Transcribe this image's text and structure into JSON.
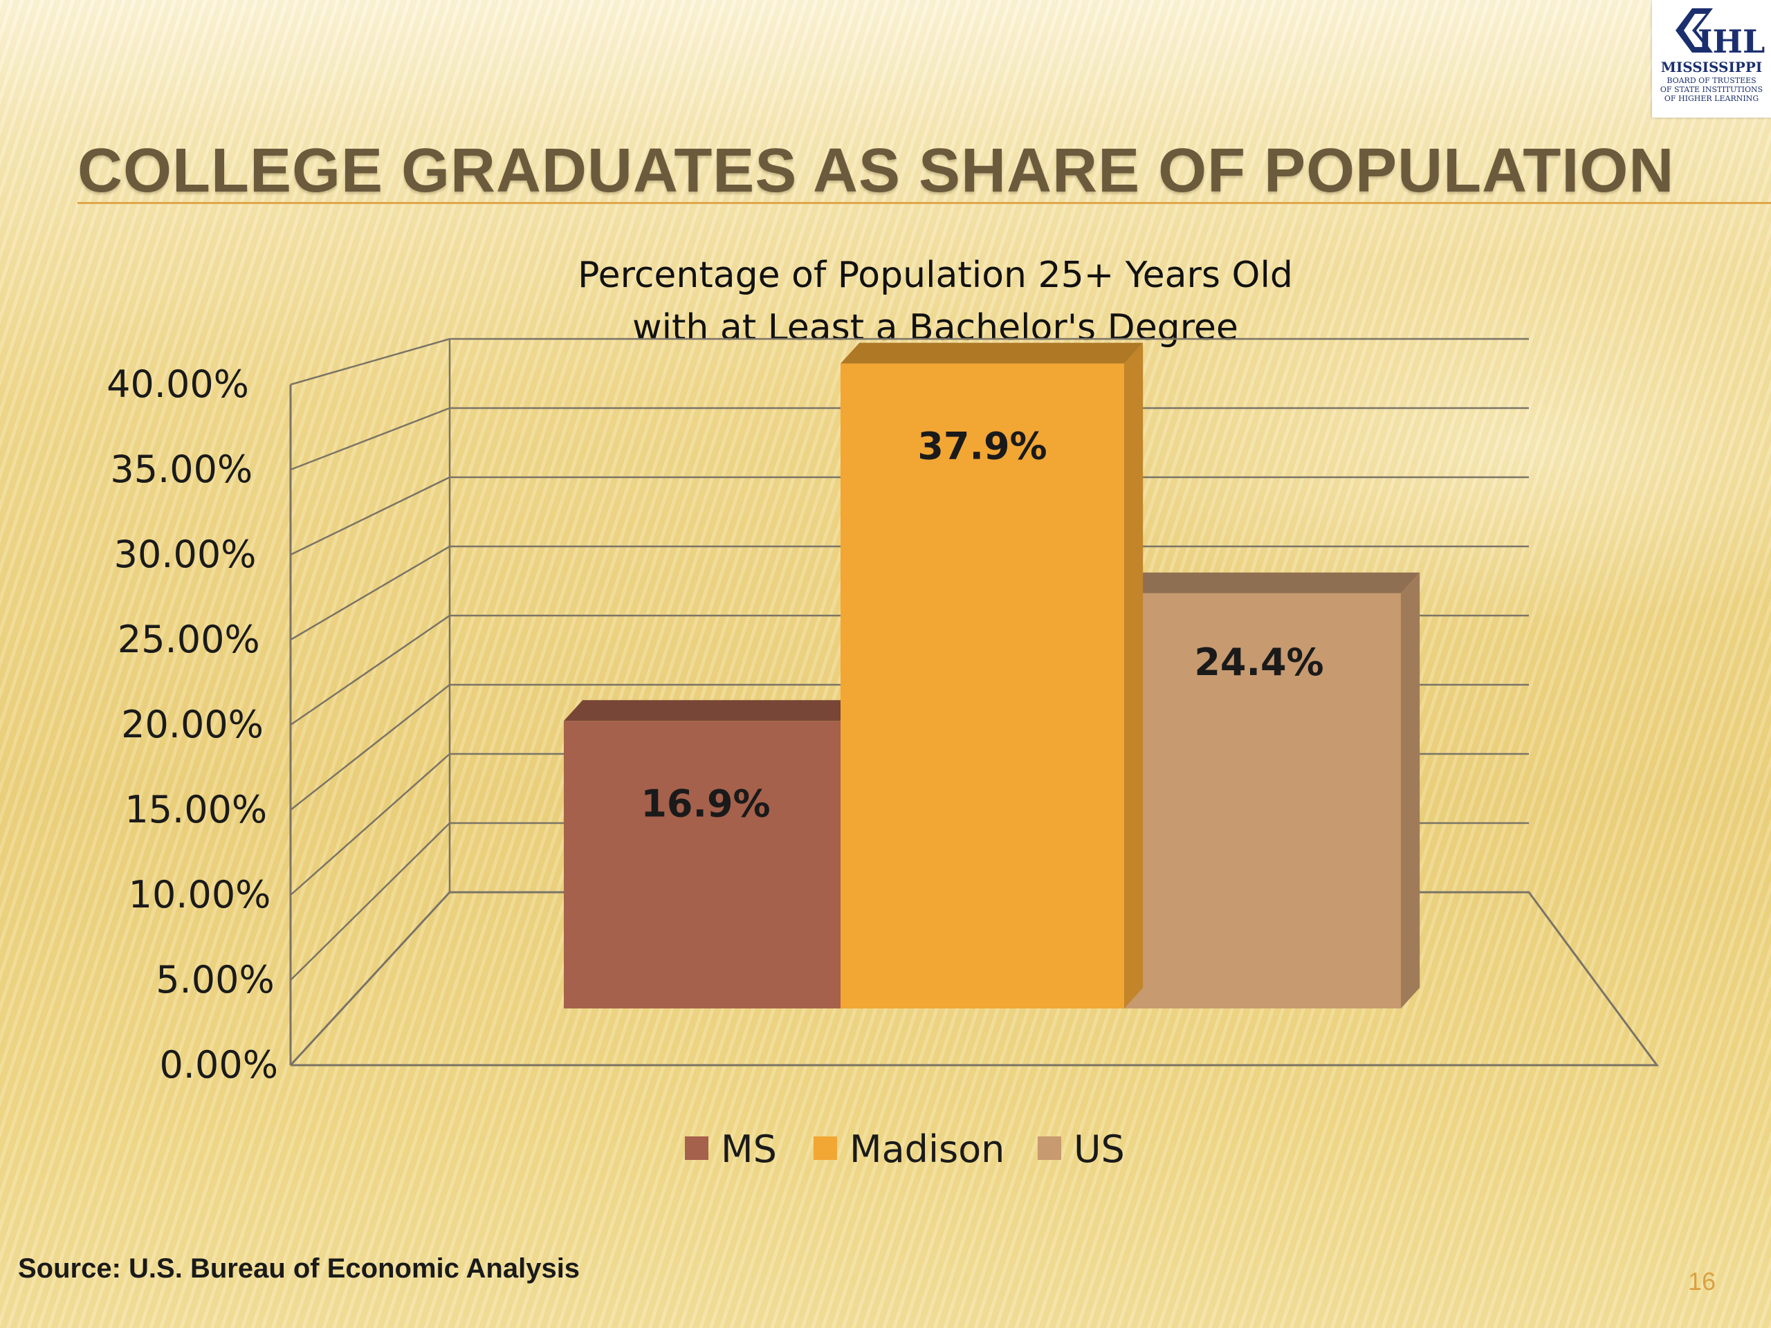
{
  "slide": {
    "title": "COLLEGE GRADUATES AS SHARE OF POPULATION",
    "source": "Source: U.S. Bureau of Economic Analysis",
    "page_number": "16"
  },
  "logo": {
    "mark": "IHL",
    "line1": "MISSISSIPPI",
    "line2": "BOARD OF TRUSTEES",
    "line3": "OF STATE INSTITUTIONS",
    "line4": "OF HIGHER LEARNING"
  },
  "chart_data": {
    "type": "bar",
    "title_lines": [
      "Percentage of Population 25+ Years Old",
      "with at Least a Bachelor's Degree"
    ],
    "categories": [
      "MS",
      "Madison",
      "US"
    ],
    "values": [
      16.9,
      37.9,
      24.4
    ],
    "value_labels": [
      "16.9%",
      "37.9%",
      "24.4%"
    ],
    "ylim": [
      0,
      40
    ],
    "y_ticks": [
      0,
      5,
      10,
      15,
      20,
      25,
      30,
      35,
      40
    ],
    "y_tick_labels": [
      "0.00%",
      "5.00%",
      "10.00%",
      "15.00%",
      "20.00%",
      "25.00%",
      "30.00%",
      "35.00%",
      "40.00%"
    ],
    "grid": true,
    "style": "3d-column",
    "legend": {
      "position": "bottom",
      "entries": [
        "MS",
        "Madison",
        "US"
      ]
    },
    "colors": {
      "MS": "#a5614b",
      "Madison": "#f2a634",
      "US": "#c79a70"
    }
  }
}
